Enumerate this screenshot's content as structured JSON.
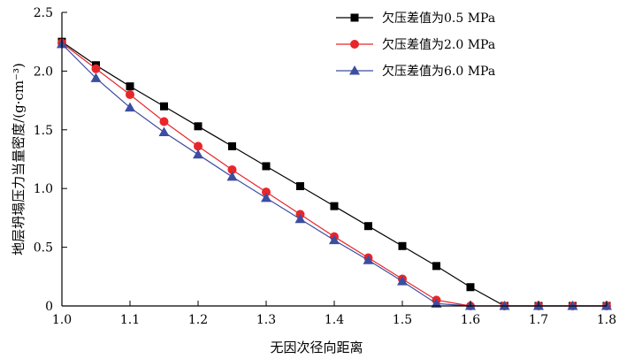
{
  "chart_data": {
    "type": "line",
    "xlabel": "无因次径向距离",
    "ylabel": "地层坍塌压力当量密度/(g·cm⁻³)",
    "xlim": [
      1.0,
      1.8
    ],
    "ylim": [
      0,
      2.5
    ],
    "xticks": [
      1.0,
      1.1,
      1.2,
      1.3,
      1.4,
      1.5,
      1.6,
      1.7,
      1.8
    ],
    "yticks": [
      0,
      0.5,
      1.0,
      1.5,
      2.0,
      2.5
    ],
    "xtick_labels": [
      "1.0",
      "1.1",
      "1.2",
      "1.3",
      "1.4",
      "1.5",
      "1.6",
      "1.7",
      "1.8"
    ],
    "ytick_labels": [
      "0",
      "0.5",
      "1.0",
      "1.5",
      "2.0",
      "2.5"
    ],
    "grid": false,
    "legend_position": "top-right",
    "x": [
      1.0,
      1.05,
      1.1,
      1.15,
      1.2,
      1.25,
      1.3,
      1.35,
      1.4,
      1.45,
      1.5,
      1.55,
      1.6,
      1.65,
      1.7,
      1.75,
      1.8
    ],
    "series": [
      {
        "name": "欠压差值为0.5 MPa",
        "marker": "square",
        "color": "#000000",
        "values": [
          2.25,
          2.05,
          1.87,
          1.7,
          1.53,
          1.36,
          1.19,
          1.02,
          0.85,
          0.68,
          0.51,
          0.34,
          0.16,
          0.0,
          0.0,
          0.0,
          0.0
        ]
      },
      {
        "name": "欠压差值为2.0 MPa",
        "marker": "circle",
        "color": "#e8262a",
        "values": [
          2.24,
          2.02,
          1.8,
          1.57,
          1.36,
          1.16,
          0.97,
          0.78,
          0.59,
          0.41,
          0.23,
          0.05,
          0.0,
          0.0,
          0.0,
          0.0,
          0.0
        ]
      },
      {
        "name": "欠压差值为6.0 MPa",
        "marker": "triangle",
        "color": "#3c4ea0",
        "values": [
          2.23,
          1.94,
          1.69,
          1.48,
          1.29,
          1.1,
          0.92,
          0.74,
          0.56,
          0.39,
          0.21,
          0.02,
          0.0,
          0.0,
          0.0,
          0.0,
          0.0
        ]
      }
    ]
  }
}
